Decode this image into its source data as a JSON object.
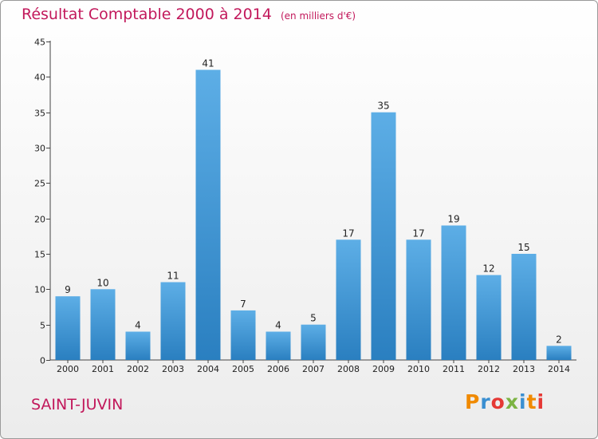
{
  "header": {
    "title": "Résultat Comptable 2000 à 2014",
    "subtitle": "(en milliers d'€)"
  },
  "footer": {
    "commune": "SAINT-JUVIN",
    "logo_text": "Proxiti"
  },
  "colors": {
    "bar_top": "#5daee6",
    "bar_bottom": "#2a7fc0",
    "title": "#c2185b"
  },
  "chart_data": {
    "type": "bar",
    "title": "Résultat Comptable 2000 à 2014",
    "subtitle": "(en milliers d'€)",
    "xlabel": "",
    "ylabel": "",
    "categories": [
      "2000",
      "2001",
      "2002",
      "2003",
      "2004",
      "2005",
      "2006",
      "2007",
      "2008",
      "2009",
      "2010",
      "2011",
      "2012",
      "2013",
      "2014"
    ],
    "values": [
      9,
      10,
      4,
      11,
      41,
      7,
      4,
      5,
      17,
      35,
      17,
      19,
      12,
      15,
      2
    ],
    "ylim": [
      0,
      45
    ],
    "yticks": [
      0,
      5,
      10,
      15,
      20,
      25,
      30,
      35,
      40,
      45
    ],
    "grid": false,
    "data_labels": true
  }
}
